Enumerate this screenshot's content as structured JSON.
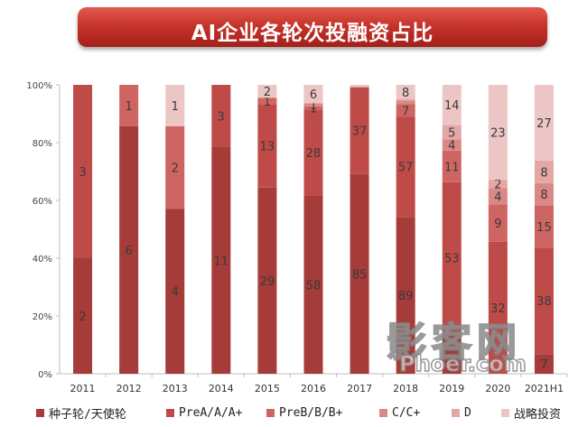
{
  "title": "AI企业各轮次投融资占比",
  "watermark": {
    "top": "影客网",
    "bottom": "Phoer.com"
  },
  "chart_data": {
    "type": "bar",
    "stacked": true,
    "normalized": true,
    "categories": [
      "2011",
      "2012",
      "2013",
      "2014",
      "2015",
      "2016",
      "2017",
      "2018",
      "2019",
      "2020",
      "2021H1"
    ],
    "y_ticks": [
      "0%",
      "20%",
      "40%",
      "60%",
      "80%",
      "100%"
    ],
    "ylim": [
      0,
      100
    ],
    "legend_position": "bottom",
    "grid": false,
    "series": [
      {
        "name": "种子轮/天使轮",
        "color": "#a63c39",
        "values": [
          2,
          6,
          4,
          11,
          29,
          58,
          85,
          89,
          14,
          0,
          7
        ]
      },
      {
        "name": "PreA/A/A+",
        "color": "#bf4b48",
        "values": [
          3,
          0,
          0,
          3,
          13,
          28,
          37,
          57,
          53,
          32,
          38
        ]
      },
      {
        "name": "PreB/B/B+",
        "color": "#cf6563",
        "values": [
          0,
          1,
          2,
          0,
          1,
          1,
          0,
          7,
          11,
          9,
          15
        ]
      },
      {
        "name": "C/C+",
        "color": "#d98886",
        "values": [
          0,
          0,
          0,
          0,
          0,
          1,
          0,
          2,
          4,
          4,
          8
        ]
      },
      {
        "name": "D",
        "color": "#e3a8a6",
        "values": [
          0,
          0,
          0,
          0,
          0,
          0,
          0,
          1,
          5,
          2,
          8
        ]
      },
      {
        "name": "战略投资",
        "color": "#ecc6c4",
        "values": [
          0,
          0,
          1,
          0,
          2,
          6,
          1,
          8,
          14,
          23,
          27
        ]
      }
    ],
    "data_labels": [
      [
        "2",
        "3",
        "",
        "",
        "",
        ""
      ],
      [
        "6",
        "",
        "1",
        "",
        "",
        ""
      ],
      [
        "4",
        "",
        "2",
        "",
        "",
        "1"
      ],
      [
        "11",
        "3",
        "",
        "",
        "",
        ""
      ],
      [
        "29",
        "13",
        "1",
        "",
        "",
        "2"
      ],
      [
        "58",
        "28",
        "1",
        "1",
        "",
        "6"
      ],
      [
        "85",
        "37",
        "",
        "",
        "",
        ""
      ],
      [
        "89",
        "57",
        "7",
        "",
        "",
        "8"
      ],
      [
        "",
        "53",
        "11",
        "4",
        "5",
        "14"
      ],
      [
        "",
        "32",
        "9",
        "4",
        "2",
        "23"
      ],
      [
        "7",
        "38",
        "15",
        "8",
        "8",
        "27"
      ]
    ]
  }
}
